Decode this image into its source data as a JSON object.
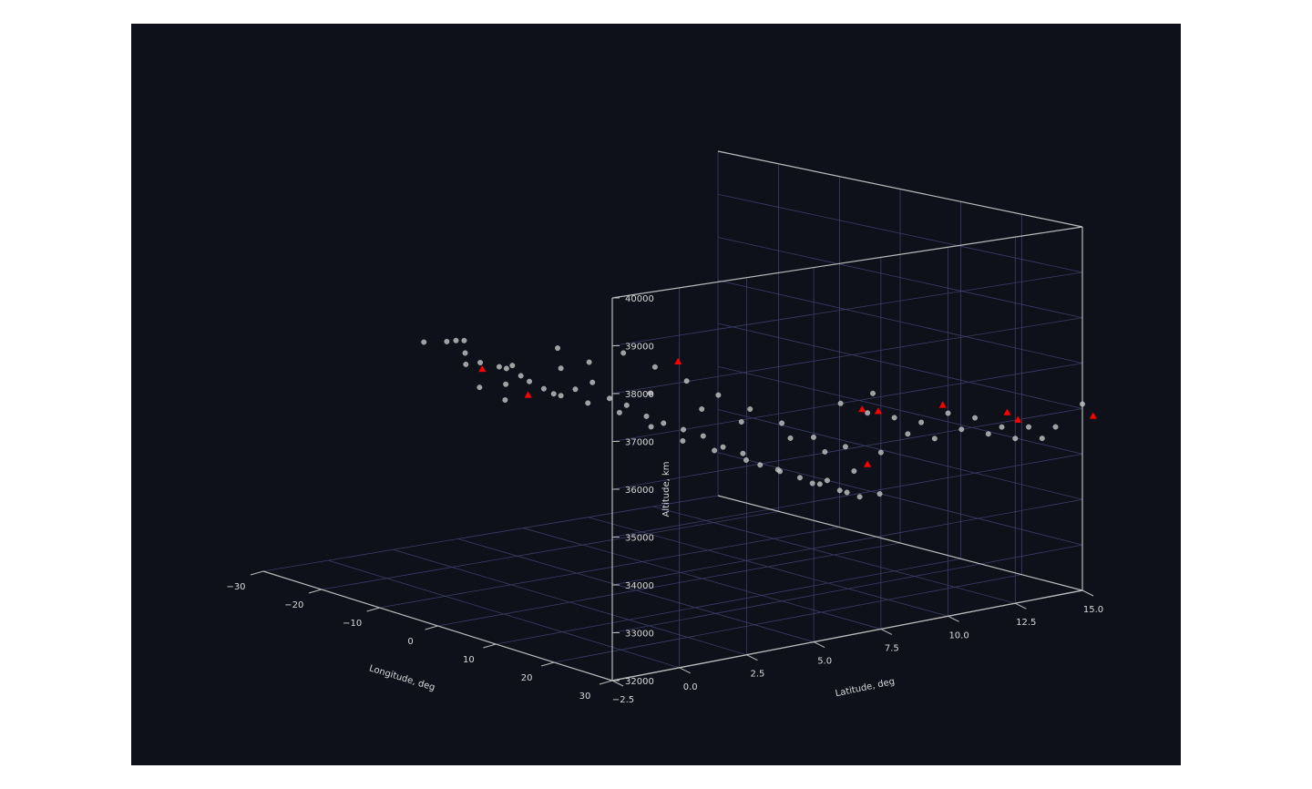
{
  "chart_data": {
    "type": "scatter",
    "projection": "3d",
    "title": "",
    "xlabel": "Longitude, deg",
    "ylabel": "Latitude, deg",
    "zlabel": "Altitude, km",
    "xlim": [
      -30,
      30
    ],
    "ylim": [
      -2.5,
      15.0
    ],
    "zlim": [
      32000,
      40000
    ],
    "x_ticks": [
      "−30",
      "−20",
      "−10",
      "0",
      "10",
      "20",
      "30"
    ],
    "y_ticks": [
      "−2.5",
      "0.0",
      "2.5",
      "5.0",
      "7.5",
      "10.0",
      "12.5",
      "15.0"
    ],
    "z_ticks": [
      "32000",
      "33000",
      "34000",
      "35000",
      "36000",
      "37000",
      "38000",
      "39000",
      "40000"
    ],
    "grid": true,
    "colors": {
      "background": "#0e1119",
      "grid": "#3a3d66",
      "axis": "#bbbbbb",
      "points": "#c4c4c4",
      "markers": "#ff0000"
    },
    "series": [
      {
        "marker": "circle",
        "color": "#c4c4c4",
        "points": [
          [
            -27,
            3.0,
            36700
          ],
          [
            -24,
            3.2,
            36800
          ],
          [
            -22,
            3.1,
            36900
          ],
          [
            -21.5,
            3.3,
            36900
          ],
          [
            -20,
            3.0,
            36700
          ],
          [
            -19,
            2.8,
            36500
          ],
          [
            -17,
            2.9,
            36600
          ],
          [
            -16,
            3.4,
            36500
          ],
          [
            -14,
            3.2,
            36200
          ],
          [
            -12,
            3.0,
            36700
          ],
          [
            -11,
            3.1,
            36500
          ],
          [
            -10,
            3.2,
            36400
          ],
          [
            -8,
            3.3,
            36300
          ],
          [
            -6,
            3.5,
            36200
          ],
          [
            -4,
            3.6,
            36400
          ],
          [
            -2,
            3.8,
            36600
          ],
          [
            0,
            4.0,
            36300
          ],
          [
            2,
            4.2,
            36200
          ],
          [
            4,
            4.5,
            36000
          ],
          [
            6,
            4.7,
            35900
          ],
          [
            8,
            5.0,
            35800
          ],
          [
            10,
            5.3,
            35700
          ],
          [
            12,
            5.6,
            35500
          ],
          [
            14,
            5.9,
            35400
          ],
          [
            16,
            6.1,
            35200
          ],
          [
            18,
            6.4,
            35100
          ],
          [
            20,
            6.7,
            35000
          ],
          [
            22,
            7.0,
            34900
          ],
          [
            24,
            7.3,
            34800
          ],
          [
            26,
            7.6,
            34700
          ],
          [
            28,
            7.9,
            34800
          ],
          [
            -18,
            3.1,
            36000
          ],
          [
            -15,
            3.4,
            35800
          ],
          [
            -9,
            3.9,
            36100
          ],
          [
            -5,
            4.3,
            36000
          ],
          [
            -1,
            4.6,
            35900
          ],
          [
            3,
            4.9,
            35700
          ],
          [
            7,
            5.2,
            35500
          ],
          [
            11,
            5.5,
            35400
          ],
          [
            15,
            5.8,
            35300
          ],
          [
            19,
            6.1,
            35200
          ],
          [
            23,
            6.5,
            35000
          ],
          [
            27,
            6.9,
            34900
          ],
          [
            -7,
            3.6,
            37200
          ],
          [
            -3,
            3.9,
            37000
          ],
          [
            1,
            4.3,
            37300
          ],
          [
            5,
            4.6,
            37100
          ],
          [
            9,
            4.9,
            36900
          ],
          [
            13,
            5.2,
            36700
          ],
          [
            17,
            5.5,
            36500
          ],
          [
            21,
            5.8,
            36300
          ],
          [
            25,
            6.1,
            36100
          ],
          [
            29,
            6.4,
            36000
          ],
          [
            -13,
            3.0,
            36600
          ],
          [
            -6,
            3.5,
            36800
          ],
          [
            6,
            4.2,
            36600
          ],
          [
            12,
            4.8,
            36400
          ],
          [
            16,
            5.4,
            36200
          ],
          [
            22,
            5.9,
            36000
          ],
          [
            26,
            6.3,
            35800
          ],
          [
            30,
            7.0,
            36700
          ],
          [
            30,
            8.0,
            36500
          ],
          [
            30,
            9.0,
            36300
          ],
          [
            30,
            10.0,
            36400
          ],
          [
            30,
            11.0,
            36200
          ],
          [
            30,
            12.0,
            35900
          ],
          [
            30,
            13.0,
            35800
          ],
          [
            30,
            14.0,
            35700
          ],
          [
            30,
            8.5,
            36100
          ],
          [
            30,
            9.5,
            35900
          ],
          [
            30,
            10.5,
            36000
          ],
          [
            30,
            11.5,
            35800
          ],
          [
            30,
            12.5,
            35600
          ],
          [
            30,
            13.5,
            35500
          ],
          [
            30,
            7.5,
            35800
          ],
          [
            30,
            6.5,
            35500
          ],
          [
            30,
            15.0,
            36100
          ],
          [
            30,
            5.5,
            35400
          ],
          [
            30,
            6.0,
            37000
          ],
          [
            30,
            7.2,
            37100
          ]
        ]
      },
      {
        "marker": "triangle",
        "color": "#ff0000",
        "points": [
          [
            -18,
            3.2,
            36400
          ],
          [
            -12,
            3.6,
            36000
          ],
          [
            8,
            4.8,
            37300
          ],
          [
            30,
            6.8,
            36800
          ],
          [
            30,
            7.4,
            36700
          ],
          [
            30,
            9.8,
            36600
          ],
          [
            30,
            12.2,
            36200
          ],
          [
            30,
            12.6,
            36000
          ],
          [
            30,
            15.4,
            35800
          ],
          [
            30,
            7.0,
            35600
          ]
        ]
      }
    ]
  }
}
